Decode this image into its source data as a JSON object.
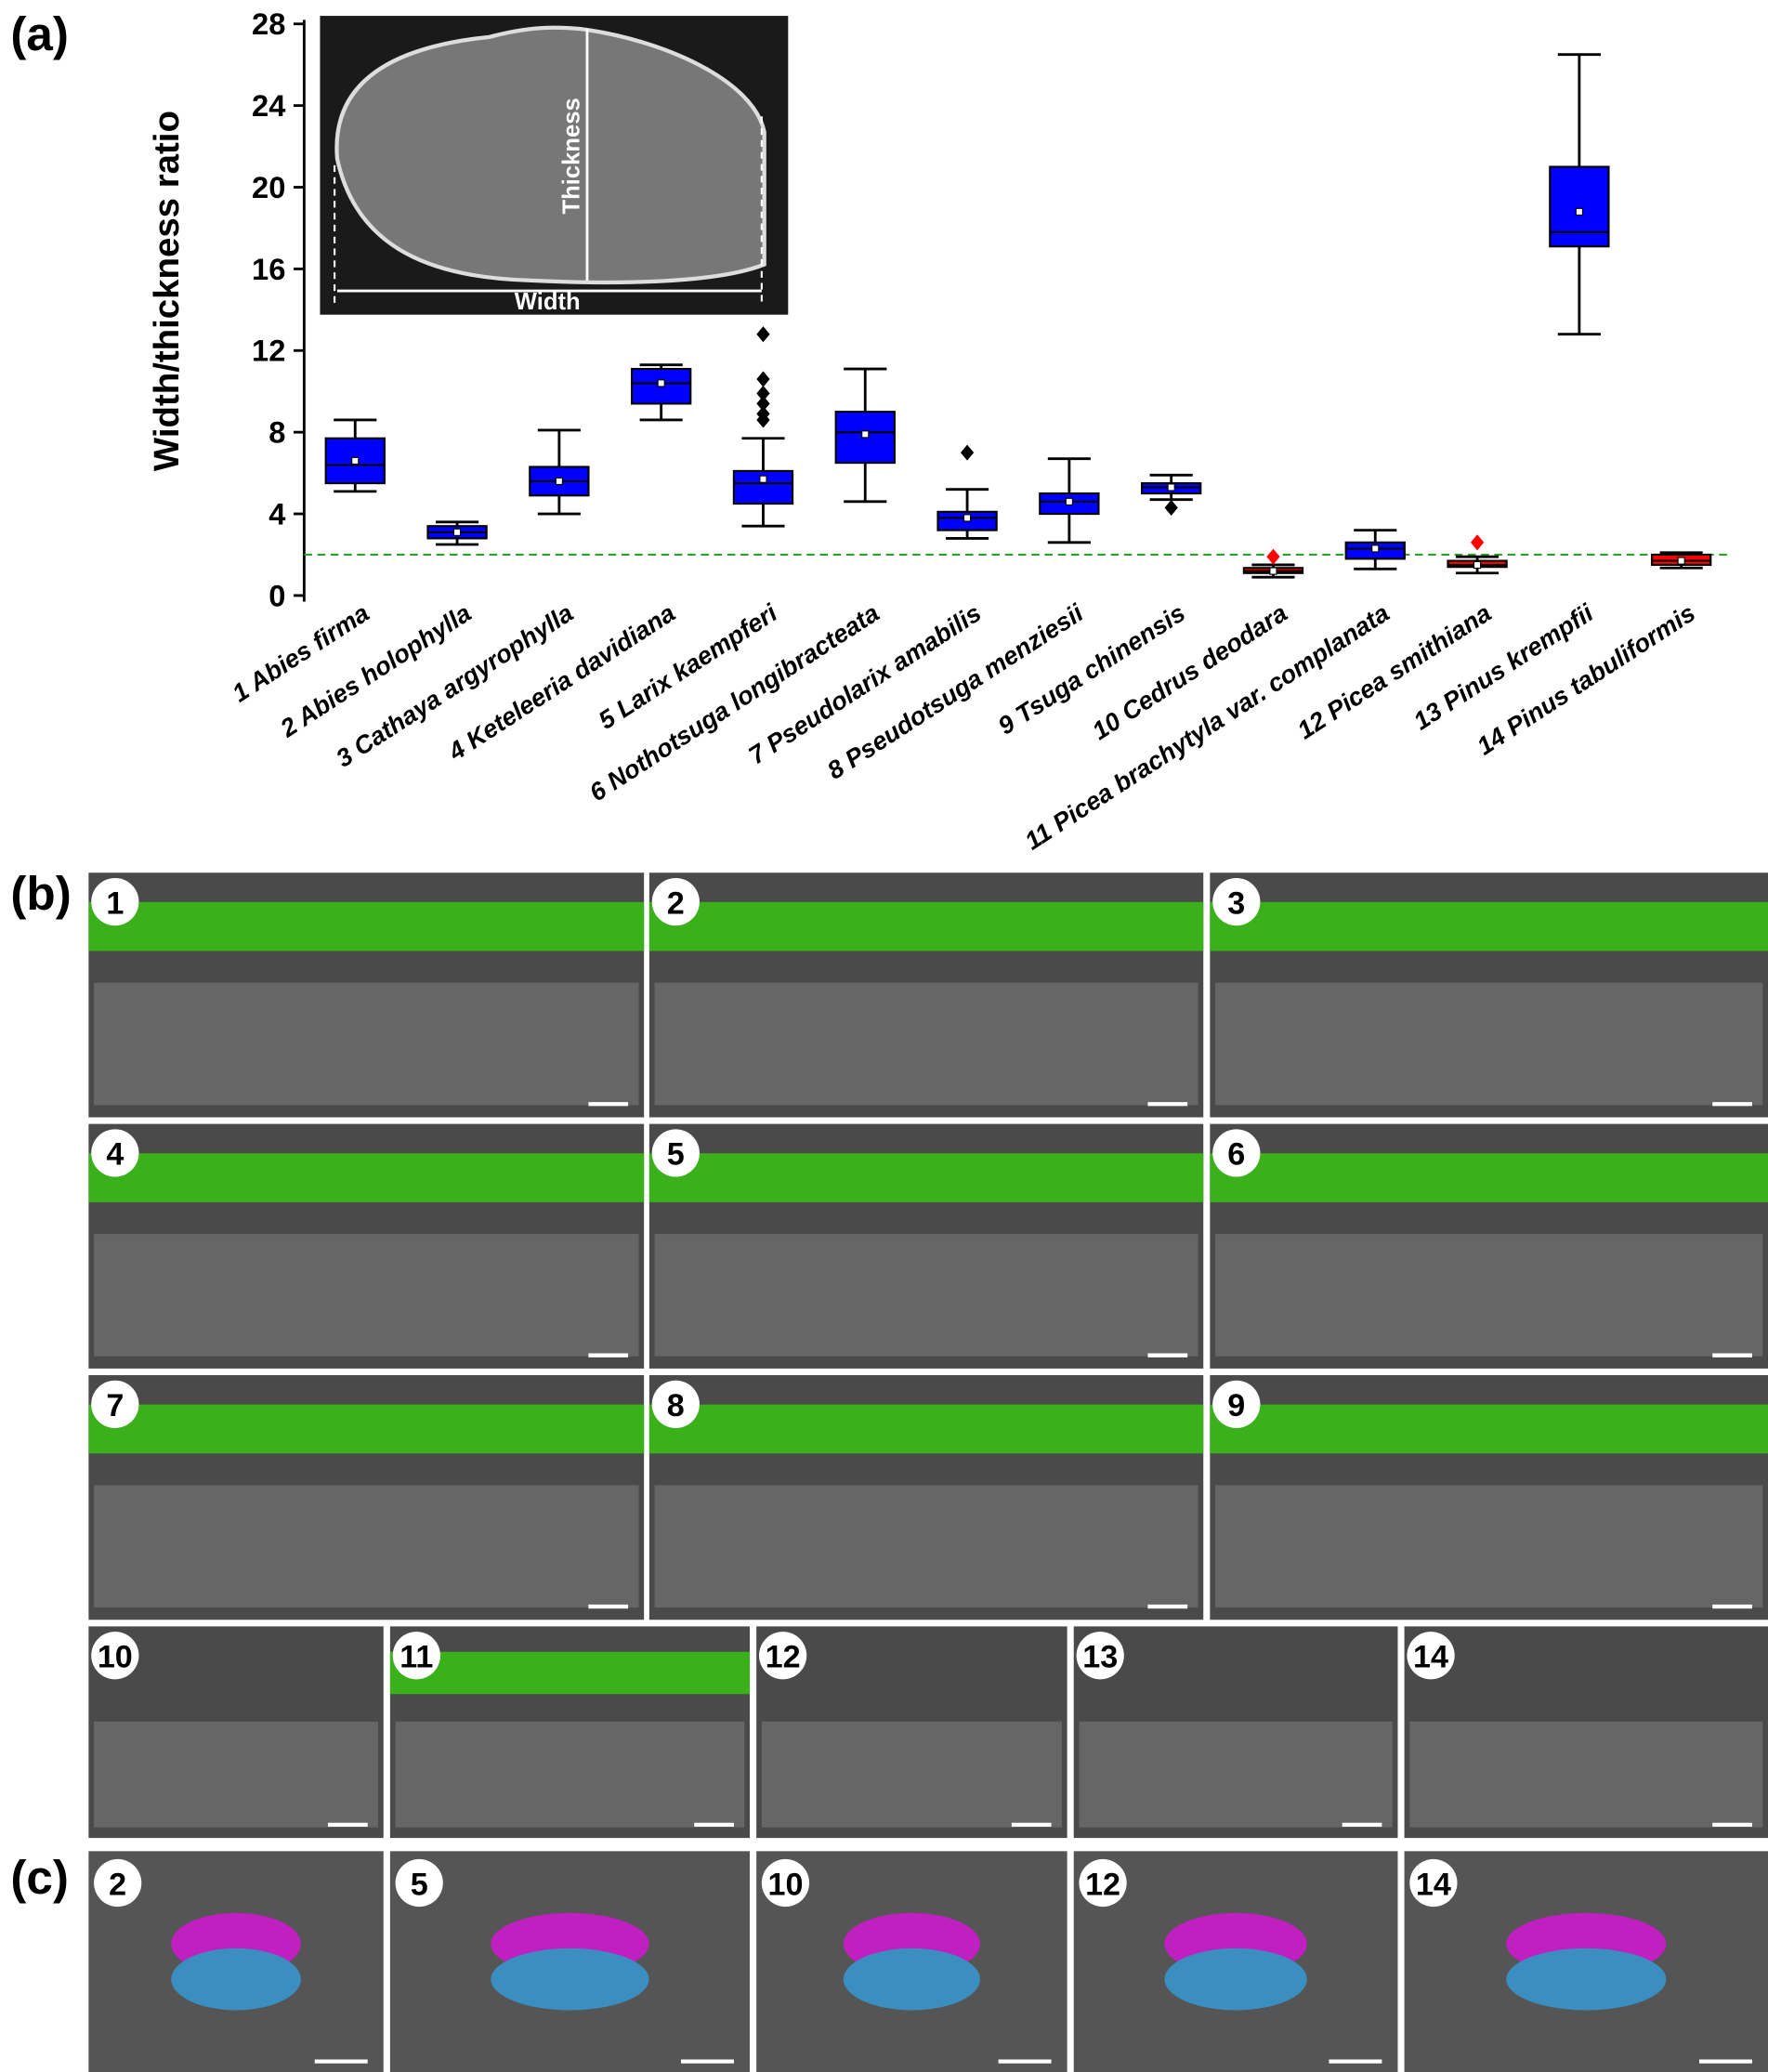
{
  "chart_data": {
    "type": "box",
    "panel_label": "(a)",
    "ylabel": "Width/thickness ratio",
    "categories": [
      "1 Abies firma",
      "2 Abies holophylla",
      "3 Cathaya argyrophylla",
      "4 Keteleeria davidiana",
      "5 Larix kaempferi",
      "6 Nothotsuga longibracteata",
      "7 Pseudolarix amabilis",
      "8 Pseudotsuga menziesii",
      "9 Tsuga chinensis",
      "10 Cedrus deodara",
      "11 Picea brachytyla var. complanata",
      "12 Picea smithiana",
      "13 Pinus krempfii",
      "14 Pinus tabuliformis"
    ],
    "boxes": [
      {
        "whislo": 5.1,
        "q1": 5.5,
        "med": 6.4,
        "q3": 7.7,
        "whishi": 8.6,
        "mean": 6.6,
        "fliers": [],
        "color": "#0000ff"
      },
      {
        "whislo": 2.5,
        "q1": 2.8,
        "med": 3.1,
        "q3": 3.4,
        "whishi": 3.6,
        "mean": 3.1,
        "fliers": [],
        "color": "#0000ff"
      },
      {
        "whislo": 4.0,
        "q1": 4.9,
        "med": 5.6,
        "q3": 6.3,
        "whishi": 8.1,
        "mean": 5.6,
        "fliers": [],
        "color": "#0000ff"
      },
      {
        "whislo": 8.6,
        "q1": 9.4,
        "med": 10.4,
        "q3": 11.1,
        "whishi": 11.3,
        "mean": 10.4,
        "fliers": [],
        "color": "#0000ff"
      },
      {
        "whislo": 3.4,
        "q1": 4.5,
        "med": 5.5,
        "q3": 6.1,
        "whishi": 7.7,
        "mean": 5.7,
        "fliers": [
          8.6,
          8.9,
          9.4,
          9.9,
          10.6,
          12.8
        ],
        "color": "#0000ff"
      },
      {
        "whislo": 4.6,
        "q1": 6.5,
        "med": 8.0,
        "q3": 9.0,
        "whishi": 11.1,
        "mean": 7.9,
        "fliers": [],
        "color": "#0000ff"
      },
      {
        "whislo": 2.8,
        "q1": 3.2,
        "med": 3.8,
        "q3": 4.1,
        "whishi": 5.2,
        "mean": 3.8,
        "fliers": [
          7.0
        ],
        "color": "#0000ff"
      },
      {
        "whislo": 2.6,
        "q1": 4.0,
        "med": 4.6,
        "q3": 5.0,
        "whishi": 6.7,
        "mean": 4.6,
        "fliers": [],
        "color": "#0000ff"
      },
      {
        "whislo": 4.7,
        "q1": 5.0,
        "med": 5.3,
        "q3": 5.5,
        "whishi": 5.9,
        "mean": 5.3,
        "fliers": [
          4.3
        ],
        "color": "#0000ff"
      },
      {
        "whislo": 0.9,
        "q1": 1.1,
        "med": 1.2,
        "q3": 1.35,
        "whishi": 1.5,
        "mean": 1.2,
        "fliers": [
          1.9
        ],
        "color": "#ff0000"
      },
      {
        "whislo": 1.3,
        "q1": 1.8,
        "med": 2.3,
        "q3": 2.6,
        "whishi": 3.2,
        "mean": 2.3,
        "fliers": [],
        "color": "#0000ff"
      },
      {
        "whislo": 1.1,
        "q1": 1.4,
        "med": 1.5,
        "q3": 1.7,
        "whishi": 1.9,
        "mean": 1.5,
        "fliers": [
          2.6
        ],
        "color": "#ff0000"
      },
      {
        "whislo": 12.8,
        "q1": 17.1,
        "med": 17.8,
        "q3": 21.0,
        "whishi": 26.5,
        "mean": 18.8,
        "fliers": [],
        "color": "#0000ff"
      },
      {
        "whislo": 1.35,
        "q1": 1.5,
        "med": 1.7,
        "q3": 2.0,
        "whishi": 2.1,
        "mean": 1.7,
        "fliers": [],
        "color": "#ff0000"
      }
    ],
    "ylim": [
      -0.3,
      28.2
    ],
    "yticks": [
      0,
      4,
      8,
      12,
      16,
      20,
      24,
      28
    ],
    "reference_line": {
      "value": 2,
      "color": "#2ca02c"
    },
    "inset": {
      "thickness_label": "Thickness",
      "width_label": "Width"
    }
  },
  "panel_b": {
    "label": "(b)",
    "numbers": [
      "1",
      "2",
      "3",
      "4",
      "5",
      "6",
      "7",
      "8",
      "9",
      "10",
      "11",
      "12",
      "13",
      "14"
    ]
  },
  "panel_c": {
    "label": "(c)",
    "numbers": [
      "2",
      "5",
      "10",
      "12",
      "14"
    ]
  }
}
